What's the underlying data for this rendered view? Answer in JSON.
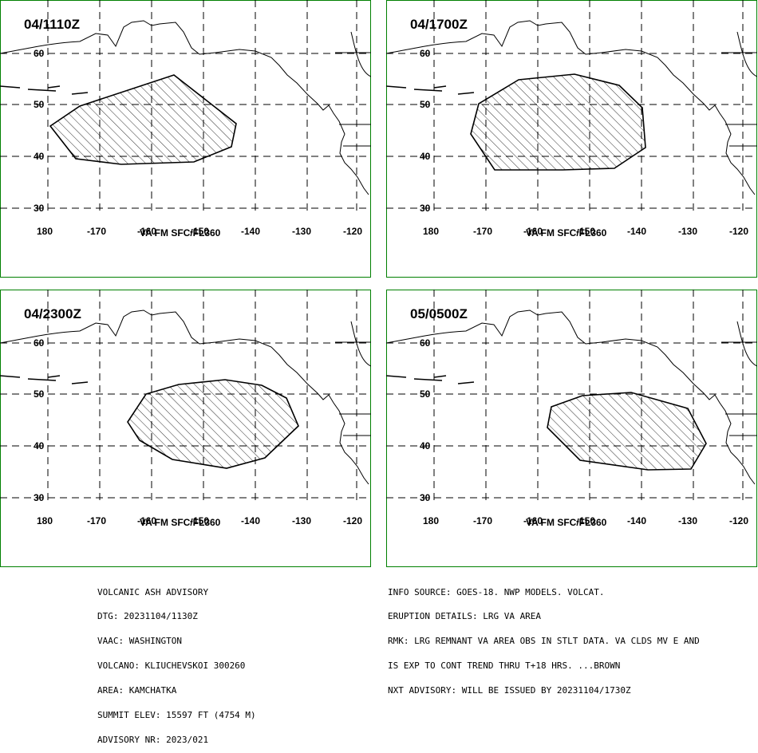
{
  "panels": [
    {
      "valid_time": "04/1110Z",
      "fl_label": "VA FM SFC/FL360"
    },
    {
      "valid_time": "04/1700Z",
      "fl_label": "VA FM SFC/FL360"
    },
    {
      "valid_time": "04/2300Z",
      "fl_label": "VA FM SFC/FL360"
    },
    {
      "valid_time": "05/0500Z",
      "fl_label": "VA FM SFC/FL360"
    }
  ],
  "map": {
    "lat_labels": [
      "60",
      "50",
      "40",
      "30"
    ],
    "lon_labels": [
      "180",
      "-170",
      "-160",
      "-150",
      "-140",
      "-130",
      "-120"
    ],
    "frame_color": "#008000",
    "ash_hatch": "diagonal"
  },
  "advisory": [
    "VOLCANIC ASH ADVISORY",
    "DTG: 20231104/1130Z",
    "VAAC: WASHINGTON",
    "VOLCANO: KLIUCHEVSKOI 300260",
    "AREA: KAMCHATKA",
    "SUMMIT ELEV: 15597 FT (4754 M)",
    "ADVISORY NR: 2023/021"
  ],
  "info": [
    "INFO SOURCE: GOES-18. NWP MODELS. VOLCAT.",
    "ERUPTION DETAILS: LRG VA AREA",
    "RMK: LRG REMNANT VA AREA OBS IN STLT DATA. VA CLDS MV E AND",
    "IS EXP TO CONT TREND THRU T+18 HRS. ...BROWN",
    "NXT ADVISORY: WILL BE ISSUED BY 20231104/1730Z"
  ]
}
